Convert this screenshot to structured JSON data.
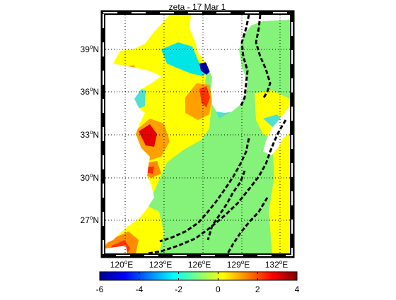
{
  "title": "zeta - 17 Mar 1",
  "lon_labels": [
    {
      "deg": "120",
      "hem": "E"
    },
    {
      "deg": "123",
      "hem": "E"
    },
    {
      "deg": "126",
      "hem": "E"
    },
    {
      "deg": "129",
      "hem": "E"
    },
    {
      "deg": "132",
      "hem": "E"
    }
  ],
  "lat_labels": [
    {
      "deg": "39",
      "hem": "N"
    },
    {
      "deg": "36",
      "hem": "N"
    },
    {
      "deg": "33",
      "hem": "N"
    },
    {
      "deg": "30",
      "hem": "N"
    },
    {
      "deg": "27",
      "hem": "N"
    }
  ],
  "colorbar": {
    "min": -6,
    "max": 4,
    "ticks": [
      "-6",
      "-4",
      "-2",
      "0",
      "2",
      "4"
    ]
  },
  "colors": {
    "land": "#ffffff",
    "background_field": "#85f27a",
    "yellow_band": "#ffff00",
    "coast": "#000000",
    "deep_blue": "#000080",
    "cyan": "#00ffff",
    "orange": "#ff8000",
    "red": "#ff0000"
  }
}
